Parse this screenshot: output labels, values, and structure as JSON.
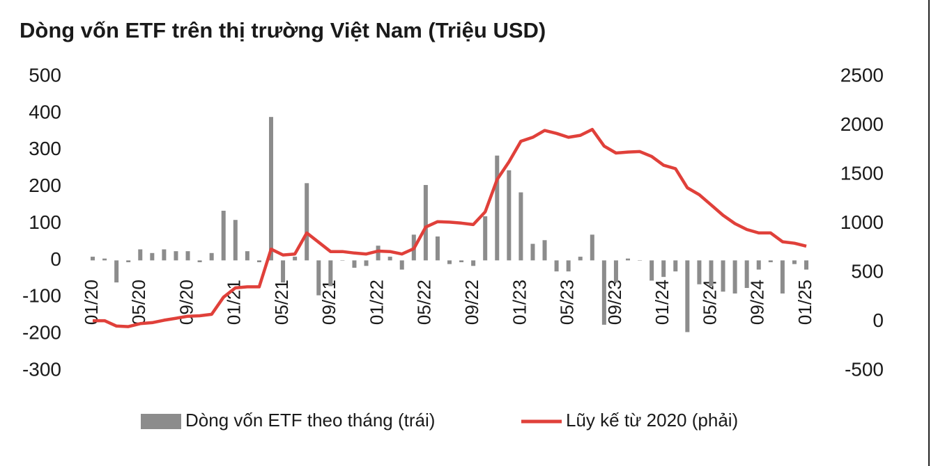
{
  "chart_data": {
    "type": "bar_line",
    "title": "Dòng vốn ETF trên thị trường Việt Nam (Triệu USD)",
    "categories": [
      "01/20",
      null,
      null,
      null,
      "05/20",
      null,
      null,
      null,
      "09/20",
      null,
      null,
      null,
      "01/21",
      null,
      null,
      null,
      "05/21",
      null,
      null,
      null,
      "09/21",
      null,
      null,
      null,
      "01/22",
      null,
      null,
      null,
      "05/22",
      null,
      null,
      null,
      "09/22",
      null,
      null,
      null,
      "01/23",
      null,
      null,
      null,
      "05/23",
      null,
      null,
      null,
      "09/23",
      null,
      null,
      null,
      "01/24",
      null,
      null,
      null,
      "05/24",
      null,
      null,
      null,
      "09/24",
      null,
      null,
      null,
      "01/25"
    ],
    "series": [
      {
        "name": "Dòng vốn ETF theo tháng (trái)",
        "type": "bar",
        "color": "#8c8c8c",
        "axis": "y",
        "values": [
          10,
          5,
          -60,
          -5,
          30,
          20,
          30,
          25,
          25,
          -5,
          20,
          135,
          110,
          25,
          -5,
          390,
          -60,
          10,
          210,
          -95,
          -70,
          0,
          -20,
          -15,
          40,
          10,
          -25,
          70,
          205,
          65,
          -10,
          -5,
          -15,
          120,
          285,
          245,
          185,
          45,
          55,
          -30,
          -30,
          10,
          70,
          -175,
          -60,
          5,
          0,
          -55,
          -45,
          -30,
          -195,
          -65,
          -70,
          -85,
          -90,
          -75,
          -25,
          -5,
          -90,
          -10,
          -25
        ]
      },
      {
        "name": "Lũy kế từ 2020 (phải)",
        "type": "line",
        "color": "#e0403a",
        "axis": "y2",
        "values": [
          10,
          10,
          -45,
          -50,
          -20,
          -10,
          15,
          35,
          55,
          60,
          75,
          250,
          345,
          355,
          355,
          740,
          680,
          690,
          905,
          810,
          715,
          715,
          700,
          690,
          720,
          715,
          690,
          745,
          965,
          1020,
          1015,
          1005,
          990,
          1120,
          1450,
          1630,
          1840,
          1880,
          1950,
          1920,
          1880,
          1900,
          1960,
          1790,
          1720,
          1730,
          1735,
          1685,
          1595,
          1560,
          1365,
          1295,
          1190,
          1085,
          1000,
          940,
          905,
          905,
          815,
          800,
          770
        ]
      }
    ],
    "ylim": [
      -300,
      500
    ],
    "yticks": [
      -300,
      -200,
      -100,
      0,
      100,
      200,
      300,
      400,
      500
    ],
    "y2lim": [
      -500,
      2500
    ],
    "y2ticks": [
      -500,
      0,
      500,
      1000,
      1500,
      2000,
      2500
    ],
    "legend": "bottom"
  }
}
